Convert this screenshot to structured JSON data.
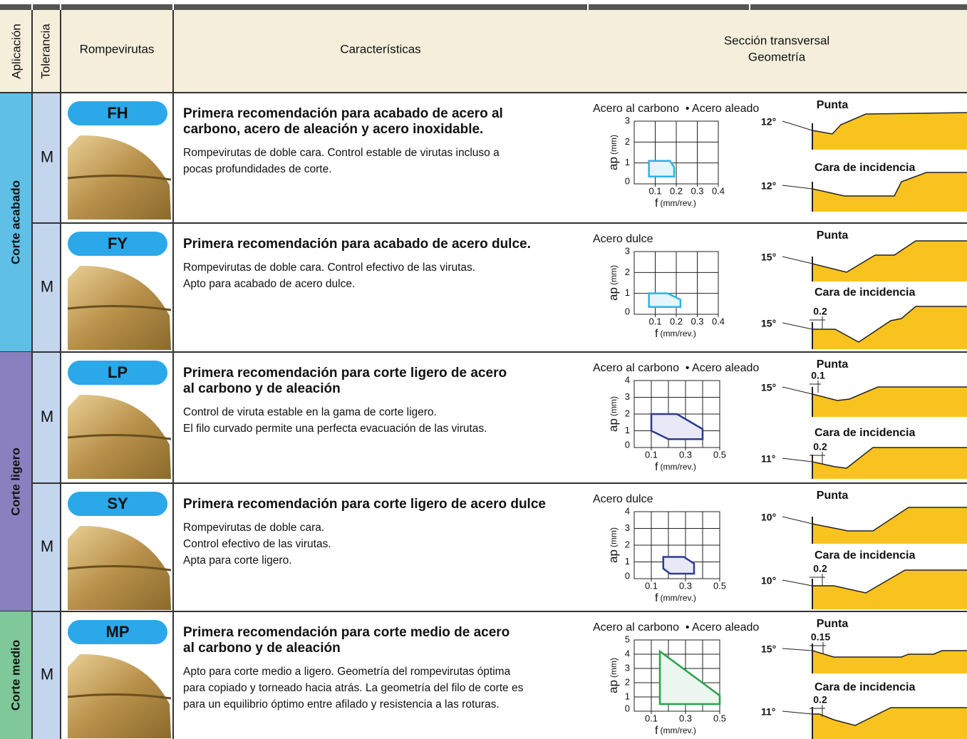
{
  "header": {
    "application": "Aplicación",
    "tolerance": "Tolerancia",
    "chipbreaker": "Rompevirutas",
    "features": "Características",
    "section": [
      "Sección transversal",
      "Geometría"
    ]
  },
  "groups": [
    {
      "label": "Corte acabado",
      "color": "#5fbfe6",
      "rows": [
        {
          "tolerance": "M",
          "chipbreaker": "FH",
          "headline": [
            "Primera recomendación para acabado de acero al",
            "carbono, acero de aleación y acero inoxidable."
          ],
          "description": [
            "Rompevirutas de doble cara. Control estable de virutas incluso a",
            "pocas profundidades de corte."
          ],
          "chart": {
            "title": "Acero al carbono  • Acero aleado",
            "y_label": "ap",
            "y_unit": "(mm)",
            "x_label": "f",
            "x_unit": "(mm/rev.)",
            "xlim": [
              0,
              0.4
            ],
            "ylim": [
              0,
              3
            ],
            "yticks": [
              0,
              1,
              2,
              3
            ],
            "xticks": [
              0.1,
              0.2,
              0.3,
              0.4
            ],
            "xgrid": [
              0.1,
              0.2,
              0.3
            ],
            "color": "#2ab4e4",
            "fill": "#e4f5fc",
            "region": [
              [
                0.07,
                0.35
              ],
              [
                0.07,
                1.1
              ],
              [
                0.17,
                1.1
              ],
              [
                0.19,
                0.8
              ],
              [
                0.19,
                0.35
              ]
            ]
          },
          "geometry": {
            "tip_label": "Punta",
            "tip_angle": "12°",
            "flank_label": "Cara de incidencia",
            "flank_angle": "12°"
          }
        },
        {
          "tolerance": "M",
          "chipbreaker": "FY",
          "headline": [
            "Primera recomendación para acabado de acero dulce."
          ],
          "description": [
            "Rompevirutas de doble cara. Control efectivo de las virutas.",
            "Apto para acabado de acero dulce."
          ],
          "chart": {
            "title": "Acero dulce",
            "y_label": "ap",
            "y_unit": "(mm)",
            "x_label": "f",
            "x_unit": "(mm/rev.)",
            "xlim": [
              0,
              0.4
            ],
            "ylim": [
              0,
              3
            ],
            "yticks": [
              0,
              1,
              2,
              3
            ],
            "xticks": [
              0.1,
              0.2,
              0.3,
              0.4
            ],
            "xgrid": [
              0.1,
              0.2,
              0.3
            ],
            "color": "#2ab4e4",
            "fill": "#e4f5fc",
            "region": [
              [
                0.07,
                0.35
              ],
              [
                0.07,
                1.0
              ],
              [
                0.16,
                1.0
              ],
              [
                0.22,
                0.7
              ],
              [
                0.22,
                0.35
              ]
            ]
          },
          "geometry": {
            "tip_label": "Punta",
            "tip_angle": "15°",
            "flank_label": "Cara de incidencia",
            "flank_angle": "15°",
            "flank_land": "0.2"
          }
        }
      ]
    },
    {
      "label": "Corte ligero",
      "color": "#8a80bf",
      "rows": [
        {
          "tolerance": "M",
          "chipbreaker": "LP",
          "headline": [
            "Primera recomendación para corte ligero de acero",
            "al carbono y de aleación"
          ],
          "description": [
            "Control de viruta estable en la gama de corte ligero.",
            "El filo curvado permite una perfecta evacuación de  las virutas."
          ],
          "chart": {
            "title": "Acero al carbono  • Acero aleado",
            "y_label": "ap",
            "y_unit": "(mm)",
            "x_label": "f",
            "x_unit": "(mm/rev.)",
            "xlim": [
              0,
              0.5
            ],
            "ylim": [
              0,
              4
            ],
            "yticks": [
              0,
              1,
              2,
              3,
              4
            ],
            "xticks": [
              0.1,
              0.3,
              0.5
            ],
            "xgrid": [
              0.1,
              0.2,
              0.3,
              0.4
            ],
            "color": "#2d3b8e",
            "fill": "#e8e8f6",
            "region": [
              [
                0.1,
                1.0
              ],
              [
                0.1,
                2.0
              ],
              [
                0.25,
                2.0
              ],
              [
                0.4,
                1.1
              ],
              [
                0.4,
                0.5
              ],
              [
                0.2,
                0.5
              ]
            ]
          },
          "geometry": {
            "tip_label": "Punta",
            "tip_angle": "15°",
            "tip_land": "0.1",
            "flank_label": "Cara de incidencia",
            "flank_angle": "11°",
            "flank_land": "0.2"
          }
        },
        {
          "tolerance": "M",
          "chipbreaker": "SY",
          "headline": [
            "Primera recomendación para corte ligero de acero dulce"
          ],
          "description": [
            "Rompevirutas de doble cara.",
            "Control efectivo de las virutas.",
            "Apta para corte ligero."
          ],
          "chart": {
            "title": "Acero dulce",
            "y_label": "ap",
            "y_unit": "(mm)",
            "x_label": "f",
            "x_unit": "(mm/rev.)",
            "xlim": [
              0,
              0.5
            ],
            "ylim": [
              0,
              4
            ],
            "yticks": [
              0,
              1,
              2,
              3,
              4
            ],
            "xticks": [
              0.1,
              0.3,
              0.5
            ],
            "xgrid": [
              0.1,
              0.2,
              0.3,
              0.4
            ],
            "color": "#2d3b8e",
            "fill": "#e8e8f6",
            "region": [
              [
                0.17,
                0.6
              ],
              [
                0.17,
                1.3
              ],
              [
                0.29,
                1.3
              ],
              [
                0.35,
                0.9
              ],
              [
                0.35,
                0.3
              ],
              [
                0.21,
                0.3
              ]
            ]
          },
          "geometry": {
            "tip_label": "Punta",
            "tip_angle": "10°",
            "flank_label": "Cara de incidencia",
            "flank_angle": "10°",
            "flank_land": "0.2"
          }
        }
      ]
    },
    {
      "label": "Corte medio",
      "color": "#7ec89a",
      "rows": [
        {
          "tolerance": "M",
          "chipbreaker": "MP",
          "headline": [
            "Primera recomendación para corte medio de acero",
            "al carbono y de aleación"
          ],
          "description": [
            "Apto para corte medio a ligero. Geometría del rompevirutas óptima",
            "para copiado y torneado hacia atrás. La geometría del filo de corte es",
            "para un equilibrio óptimo entre afilado y resistencia a las  roturas."
          ],
          "chart": {
            "title": "Acero al carbono  • Acero aleado",
            "y_label": "ap",
            "y_unit": "(mm)",
            "x_label": "f",
            "x_unit": "(mm/rev.)",
            "xlim": [
              0,
              0.5
            ],
            "ylim": [
              0,
              5
            ],
            "yticks": [
              0,
              1,
              2,
              3,
              4,
              5
            ],
            "xticks": [
              0.1,
              0.3,
              0.5
            ],
            "xgrid": [
              0.1,
              0.2,
              0.3,
              0.4
            ],
            "color": "#2aa04a",
            "fill": "#eaf6ee",
            "region": [
              [
                0.15,
                0.5
              ],
              [
                0.15,
                4.2
              ],
              [
                0.5,
                1.1
              ],
              [
                0.5,
                0.5
              ]
            ]
          },
          "geometry": {
            "tip_label": "Punta",
            "tip_angle": "15°",
            "tip_land": "0.15",
            "flank_label": "Cara de incidencia",
            "flank_angle": "11°",
            "flank_land": "0.2"
          }
        }
      ]
    }
  ]
}
